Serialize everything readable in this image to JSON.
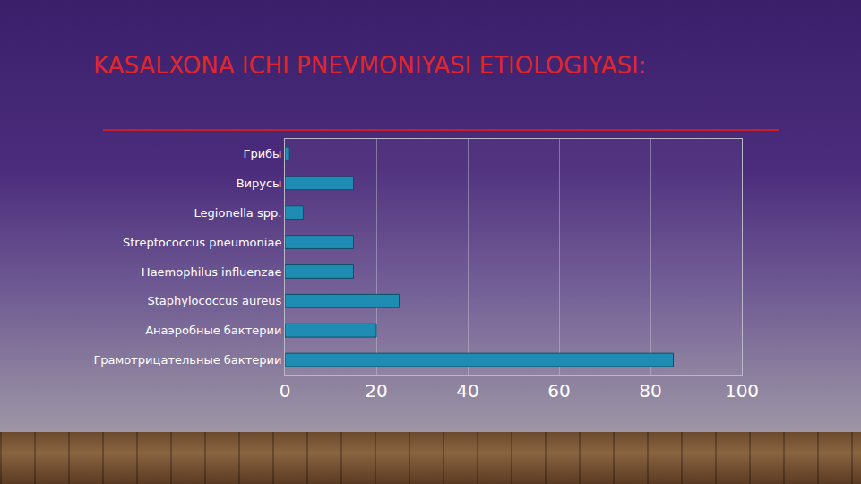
{
  "chart_data": {
    "type": "bar",
    "orientation": "horizontal",
    "title": "KASALXONA ICHI PNEVMONIYASI ETIOLOGIYASI:",
    "categories": [
      "Грибы",
      "Вирусы",
      "Legionella spp.",
      "Streptococcus pneumoniae",
      "Haemophilus influenzae",
      "Staphylococcus aureus",
      "Анаэробные бактерии",
      "Грамотрицательные бактерии"
    ],
    "values": [
      1,
      15,
      4,
      15,
      15,
      25,
      20,
      85
    ],
    "color": "#1f8db3",
    "xlim": [
      0,
      100
    ],
    "xticks": [
      0,
      20,
      40,
      60,
      80,
      100
    ],
    "grid": true
  }
}
